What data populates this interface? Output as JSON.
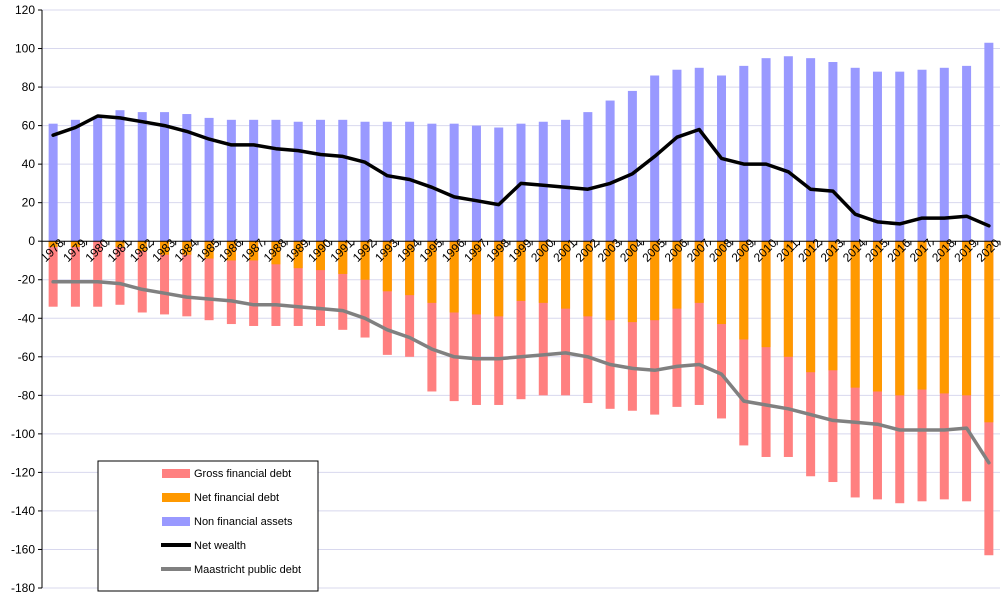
{
  "chart_data": {
    "type": "bar",
    "title": "",
    "xlabel": "",
    "ylabel": "",
    "ylim": [
      -180,
      120
    ],
    "y_ticks": [
      120,
      100,
      80,
      60,
      40,
      20,
      0,
      -20,
      -40,
      -60,
      -80,
      -100,
      -120,
      -140,
      -160,
      -180
    ],
    "grid": true,
    "legend_position": "bottom-left",
    "categories": [
      "1978",
      "1979",
      "1980",
      "1981",
      "1982",
      "1983",
      "1984",
      "1985",
      "1986",
      "1987",
      "1988",
      "1989",
      "1990",
      "1991",
      "1992",
      "1993",
      "1994",
      "1995",
      "1996",
      "1997",
      "1998",
      "1999",
      "2000",
      "2001",
      "2002",
      "2003",
      "2004",
      "2005",
      "2006",
      "2007",
      "2008",
      "2009",
      "2010",
      "2011",
      "2012",
      "2013",
      "2014",
      "2015",
      "2016",
      "2017",
      "2018",
      "2019",
      "2020"
    ],
    "series": [
      {
        "name": "Gross financial debt",
        "kind": "bar",
        "color": "#ff8080",
        "values": [
          -34,
          -34,
          -34,
          -33,
          -37,
          -38,
          -39,
          -41,
          -43,
          -44,
          -44,
          -44,
          -44,
          -46,
          -50,
          -59,
          -60,
          -78,
          -83,
          -85,
          -85,
          -82,
          -80,
          -80,
          -84,
          -87,
          -88,
          -90,
          -86,
          -85,
          -92,
          -106,
          -112,
          -112,
          -122,
          -125,
          -133,
          -134,
          -136,
          -135,
          -134,
          -135,
          -163
        ]
      },
      {
        "name": "Net financial debt",
        "kind": "bar",
        "color": "#ff9900",
        "values": [
          -3,
          -3,
          0,
          -3,
          -5,
          -7,
          -7,
          -9,
          -10,
          -10,
          -12,
          -14,
          -15,
          -17,
          -20,
          -26,
          -28,
          -32,
          -37,
          -38,
          -39,
          -31,
          -32,
          -35,
          -39,
          -41,
          -42,
          -41,
          -35,
          -32,
          -43,
          -51,
          -55,
          -60,
          -68,
          -67,
          -76,
          -78,
          -80,
          -77,
          -79,
          -80,
          -94
        ]
      },
      {
        "name": "Non financial assets",
        "kind": "bar",
        "color": "#9999ff",
        "values": [
          61,
          63,
          64,
          68,
          67,
          67,
          66,
          64,
          63,
          63,
          63,
          62,
          63,
          63,
          62,
          62,
          62,
          61,
          61,
          60,
          59,
          61,
          62,
          63,
          67,
          73,
          78,
          86,
          89,
          90,
          86,
          91,
          95,
          96,
          95,
          93,
          90,
          88,
          88,
          89,
          90,
          91,
          103
        ]
      },
      {
        "name": "Net wealth",
        "kind": "line",
        "color": "#000000",
        "values": [
          55,
          59,
          65,
          64,
          62,
          60,
          57,
          53,
          50,
          50,
          48,
          47,
          45,
          44,
          41,
          34,
          32,
          28,
          23,
          21,
          19,
          30,
          29,
          28,
          27,
          30,
          35,
          44,
          54,
          58,
          43,
          40,
          40,
          36,
          27,
          26,
          14,
          10,
          9,
          12,
          12,
          13,
          8
        ]
      },
      {
        "name": "Maastricht public debt",
        "kind": "line",
        "color": "#808080",
        "values": [
          -21,
          -21,
          -21,
          -22,
          -25,
          -27,
          -29,
          -30,
          -31,
          -33,
          -33,
          -34,
          -35,
          -36,
          -40,
          -46,
          -50,
          -56,
          -60,
          -61,
          -61,
          -60,
          -59,
          -58,
          -60,
          -64,
          -66,
          -67,
          -65,
          -64,
          -69,
          -83,
          -85,
          -87,
          -90,
          -93,
          -94,
          -95,
          -98,
          -98,
          -98,
          -97,
          -115
        ]
      }
    ]
  }
}
